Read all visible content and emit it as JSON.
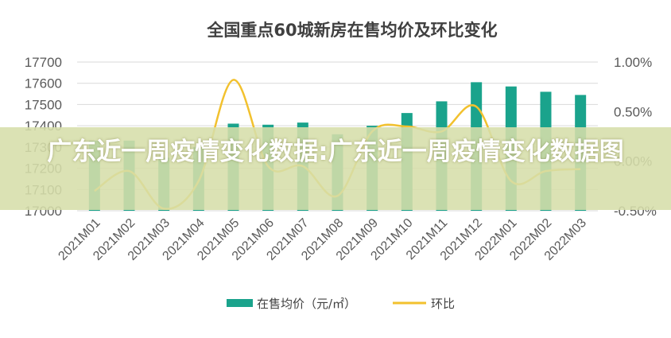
{
  "chart_data": {
    "type": "bar",
    "title": "全国重点60城新房在售均价及环比变化",
    "categories": [
      "2021M01",
      "2021M02",
      "2021M03",
      "2021M04",
      "2021M05",
      "2021M06",
      "2021M07",
      "2021M08",
      "2021M09",
      "2021M10",
      "2021M11",
      "2021M12",
      "2022M01",
      "2022M02",
      "2022M03"
    ],
    "y_left": {
      "ylim": [
        17000,
        17700
      ],
      "ticks": [
        "17000",
        "17100",
        "17200",
        "17300",
        "17400",
        "17500",
        "17600",
        "17700"
      ]
    },
    "y_right": {
      "ylim": [
        -0.5,
        1.0
      ],
      "ticks": [
        "-0.50%",
        "0.00%",
        "0.50%",
        "1.00%"
      ]
    },
    "series": [
      {
        "name": "在售均价（元/㎡）",
        "type": "bar",
        "axis": "left",
        "color": "#1aa38c",
        "values": [
          17330,
          17330,
          17250,
          17300,
          17410,
          17405,
          17415,
          17360,
          17400,
          17460,
          17515,
          17605,
          17585,
          17560,
          17545
        ]
      },
      {
        "name": "环比",
        "type": "line",
        "axis": "right",
        "color": "#f2c12e",
        "values": [
          -0.3,
          -0.1,
          -0.48,
          -0.2,
          0.82,
          -0.05,
          -0.05,
          -0.35,
          0.3,
          0.35,
          0.3,
          0.55,
          -0.2,
          -0.1,
          -0.08
        ]
      }
    ],
    "legend_position": "bottom",
    "grid": true
  },
  "overlay": {
    "text": "广东近一周疫情变化数据:广东近一周疫情变化数据图"
  }
}
